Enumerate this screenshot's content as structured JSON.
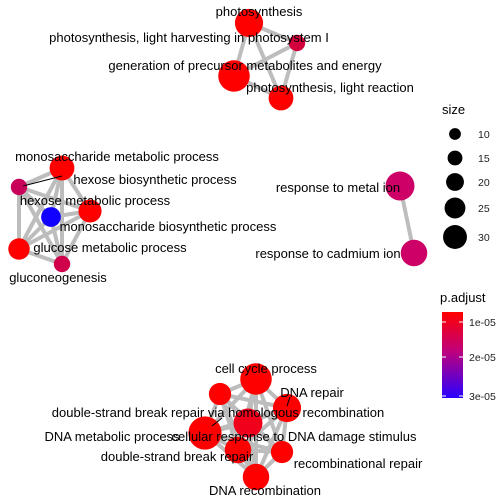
{
  "size_legend": {
    "title": "size",
    "entries": [
      10,
      15,
      20,
      25,
      30
    ]
  },
  "color_legend": {
    "title": "p.adjust",
    "ticks": [
      "1e-05",
      "2e-05",
      "3e-05"
    ],
    "low_color": "#ff0000",
    "high_color": "#0000ff"
  },
  "edge_color": "#bdbdbd",
  "nodes": [
    {
      "id": "photosynthesis",
      "label": "photosynthesis",
      "size": 24,
      "color": "#ff0000"
    },
    {
      "id": "light-harvesting",
      "label": "photosynthesis, light harvesting in photosystem I",
      "size": 10,
      "color": "#d4003e"
    },
    {
      "id": "precursor-metabolites",
      "label": "generation of precursor metabolites and energy",
      "size": 28,
      "color": "#ff0000"
    },
    {
      "id": "light-reaction",
      "label": "photosynthesis, light reaction",
      "size": 20,
      "color": "#ff0000"
    },
    {
      "id": "monosaccharide-metabolic",
      "label": "monosaccharide metabolic process",
      "size": 20,
      "color": "#ff0000"
    },
    {
      "id": "hexose-biosynthetic",
      "label": "hexose biosynthetic process",
      "size": 10,
      "color": "#c8005a"
    },
    {
      "id": "hexose-metabolic",
      "label": "hexose metabolic process",
      "size": 14,
      "color": "#1100ff"
    },
    {
      "id": "monosaccharide-biosynthetic",
      "label": "monosaccharide biosynthetic process",
      "size": 18,
      "color": "#ff0000"
    },
    {
      "id": "glucose-metabolic",
      "label": "glucose metabolic process",
      "size": 16,
      "color": "#ff0000"
    },
    {
      "id": "gluconeogenesis",
      "label": "gluconeogenesis",
      "size": 10,
      "color": "#d0004a"
    },
    {
      "id": "response-metal",
      "label": "response to metal ion",
      "size": 25,
      "color": "#cc0066"
    },
    {
      "id": "response-cadmium",
      "label": "response to cadmium ion",
      "size": 22,
      "color": "#cc0066"
    },
    {
      "id": "cell-cycle",
      "label": "cell cycle process",
      "size": 28,
      "color": "#ff0000"
    },
    {
      "id": "dna-repair",
      "label": "DNA repair",
      "size": 24,
      "color": "#ff0000"
    },
    {
      "id": "dsb-repair-hr",
      "label": "double-strand break repair via homologous recombination",
      "size": 17,
      "color": "#ff0000"
    },
    {
      "id": "dna-metabolic",
      "label": "DNA metabolic process",
      "size": 30,
      "color": "#ff0000"
    },
    {
      "id": "cellular-response-dna",
      "label": "cellular response to DNA damage stimulus",
      "size": 25,
      "color": "#f0001a"
    },
    {
      "id": "dsb-repair",
      "label": "double-strand break repair",
      "size": 22,
      "color": "#ff0000"
    },
    {
      "id": "recombinational-repair",
      "label": "recombinational repair",
      "size": 17,
      "color": "#ff0000"
    },
    {
      "id": "dna-recombination",
      "label": "DNA recombination",
      "size": 22,
      "color": "#ff0000"
    }
  ],
  "edges": [
    [
      "photosynthesis",
      "light-harvesting"
    ],
    [
      "photosynthesis",
      "precursor-metabolites"
    ],
    [
      "photosynthesis",
      "light-reaction"
    ],
    [
      "light-harvesting",
      "light-reaction"
    ],
    [
      "light-harvesting",
      "precursor-metabolites"
    ],
    [
      "precursor-metabolites",
      "light-reaction"
    ],
    [
      "monosaccharide-metabolic",
      "hexose-biosynthetic"
    ],
    [
      "monosaccharide-metabolic",
      "hexose-metabolic"
    ],
    [
      "monosaccharide-metabolic",
      "monosaccharide-biosynthetic"
    ],
    [
      "monosaccharide-metabolic",
      "glucose-metabolic"
    ],
    [
      "monosaccharide-metabolic",
      "gluconeogenesis"
    ],
    [
      "hexose-biosynthetic",
      "hexose-metabolic"
    ],
    [
      "hexose-biosynthetic",
      "monosaccharide-biosynthetic"
    ],
    [
      "hexose-biosynthetic",
      "glucose-metabolic"
    ],
    [
      "hexose-biosynthetic",
      "gluconeogenesis"
    ],
    [
      "hexose-metabolic",
      "monosaccharide-biosynthetic"
    ],
    [
      "hexose-metabolic",
      "glucose-metabolic"
    ],
    [
      "hexose-metabolic",
      "gluconeogenesis"
    ],
    [
      "monosaccharide-biosynthetic",
      "glucose-metabolic"
    ],
    [
      "monosaccharide-biosynthetic",
      "gluconeogenesis"
    ],
    [
      "glucose-metabolic",
      "gluconeogenesis"
    ],
    [
      "response-metal",
      "response-cadmium"
    ],
    [
      "cell-cycle",
      "dna-repair"
    ],
    [
      "cell-cycle",
      "dsb-repair-hr"
    ],
    [
      "cell-cycle",
      "dna-metabolic"
    ],
    [
      "cell-cycle",
      "cellular-response-dna"
    ],
    [
      "cell-cycle",
      "dsb-repair"
    ],
    [
      "cell-cycle",
      "recombinational-repair"
    ],
    [
      "cell-cycle",
      "dna-recombination"
    ],
    [
      "dna-repair",
      "dsb-repair-hr"
    ],
    [
      "dna-repair",
      "dna-metabolic"
    ],
    [
      "dna-repair",
      "cellular-response-dna"
    ],
    [
      "dna-repair",
      "dsb-repair"
    ],
    [
      "dna-repair",
      "recombinational-repair"
    ],
    [
      "dna-repair",
      "dna-recombination"
    ],
    [
      "dsb-repair-hr",
      "dna-metabolic"
    ],
    [
      "dsb-repair-hr",
      "cellular-response-dna"
    ],
    [
      "dsb-repair-hr",
      "dsb-repair"
    ],
    [
      "dsb-repair-hr",
      "recombinational-repair"
    ],
    [
      "dsb-repair-hr",
      "dna-recombination"
    ],
    [
      "dna-metabolic",
      "cellular-response-dna"
    ],
    [
      "dna-metabolic",
      "dsb-repair"
    ],
    [
      "dna-metabolic",
      "recombinational-repair"
    ],
    [
      "dna-metabolic",
      "dna-recombination"
    ],
    [
      "cellular-response-dna",
      "dsb-repair"
    ],
    [
      "cellular-response-dna",
      "recombinational-repair"
    ],
    [
      "cellular-response-dna",
      "dna-recombination"
    ],
    [
      "dsb-repair",
      "recombinational-repair"
    ],
    [
      "dsb-repair",
      "dna-recombination"
    ],
    [
      "recombinational-repair",
      "dna-recombination"
    ]
  ]
}
